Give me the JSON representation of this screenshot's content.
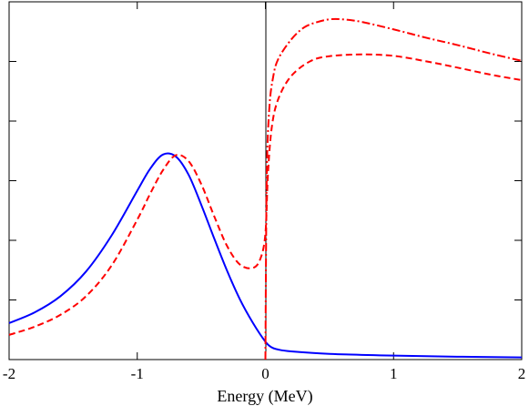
{
  "chart_data": {
    "type": "line",
    "title": "",
    "xlabel": "Energy (MeV)",
    "ylabel": "",
    "xlim": [
      -2,
      2
    ],
    "ylim": [
      0,
      1
    ],
    "grid": false,
    "legend": "none",
    "x_ticks": [
      -2,
      -1,
      0,
      1,
      2
    ],
    "x_tick_labels": [
      "-2",
      "-1",
      "0",
      "1",
      "2"
    ],
    "y_tick_count": 7,
    "vertical_reference_line_x": 0,
    "series": [
      {
        "style": "solid",
        "color": "#0000ff",
        "points": [
          [
            -2.0,
            0.102
          ],
          [
            -1.8,
            0.132
          ],
          [
            -1.6,
            0.177
          ],
          [
            -1.4,
            0.246
          ],
          [
            -1.2,
            0.347
          ],
          [
            -1.0,
            0.472
          ],
          [
            -0.9,
            0.533
          ],
          [
            -0.8,
            0.573
          ],
          [
            -0.7,
            0.568
          ],
          [
            -0.6,
            0.517
          ],
          [
            -0.5,
            0.432
          ],
          [
            -0.4,
            0.339
          ],
          [
            -0.3,
            0.249
          ],
          [
            -0.2,
            0.169
          ],
          [
            -0.1,
            0.104
          ],
          [
            0.0,
            0.05
          ],
          [
            0.05,
            0.034
          ],
          [
            0.1,
            0.028
          ],
          [
            0.2,
            0.023
          ],
          [
            0.5,
            0.016
          ],
          [
            1.0,
            0.011
          ],
          [
            1.5,
            0.008
          ],
          [
            2.0,
            0.006
          ]
        ]
      },
      {
        "style": "dashed",
        "color": "#ff0000",
        "points": [
          [
            -2.0,
            0.069
          ],
          [
            -1.8,
            0.092
          ],
          [
            -1.6,
            0.125
          ],
          [
            -1.4,
            0.177
          ],
          [
            -1.2,
            0.263
          ],
          [
            -1.0,
            0.391
          ],
          [
            -0.9,
            0.463
          ],
          [
            -0.8,
            0.529
          ],
          [
            -0.7,
            0.571
          ],
          [
            -0.6,
            0.555
          ],
          [
            -0.5,
            0.49
          ],
          [
            -0.4,
            0.401
          ],
          [
            -0.3,
            0.318
          ],
          [
            -0.2,
            0.266
          ],
          [
            -0.1,
            0.256
          ],
          [
            -0.04,
            0.281
          ],
          [
            0.0,
            0.352
          ],
          [
            0.02,
            0.52
          ],
          [
            0.05,
            0.65
          ],
          [
            0.1,
            0.728
          ],
          [
            0.2,
            0.792
          ],
          [
            0.35,
            0.834
          ],
          [
            0.5,
            0.848
          ],
          [
            0.75,
            0.853
          ],
          [
            1.0,
            0.849
          ],
          [
            1.25,
            0.834
          ],
          [
            1.5,
            0.816
          ],
          [
            1.75,
            0.797
          ],
          [
            2.0,
            0.781
          ]
        ]
      },
      {
        "style": "dash-dot",
        "color": "#ff0000",
        "points": [
          [
            0.0,
            0.0
          ],
          [
            0.01,
            0.5
          ],
          [
            0.03,
            0.7
          ],
          [
            0.06,
            0.789
          ],
          [
            0.1,
            0.84
          ],
          [
            0.2,
            0.894
          ],
          [
            0.3,
            0.928
          ],
          [
            0.4,
            0.943
          ],
          [
            0.5,
            0.951
          ],
          [
            0.6,
            0.951
          ],
          [
            0.75,
            0.944
          ],
          [
            1.0,
            0.923
          ],
          [
            1.25,
            0.9
          ],
          [
            1.5,
            0.879
          ],
          [
            1.75,
            0.856
          ],
          [
            2.0,
            0.835
          ]
        ]
      }
    ]
  }
}
